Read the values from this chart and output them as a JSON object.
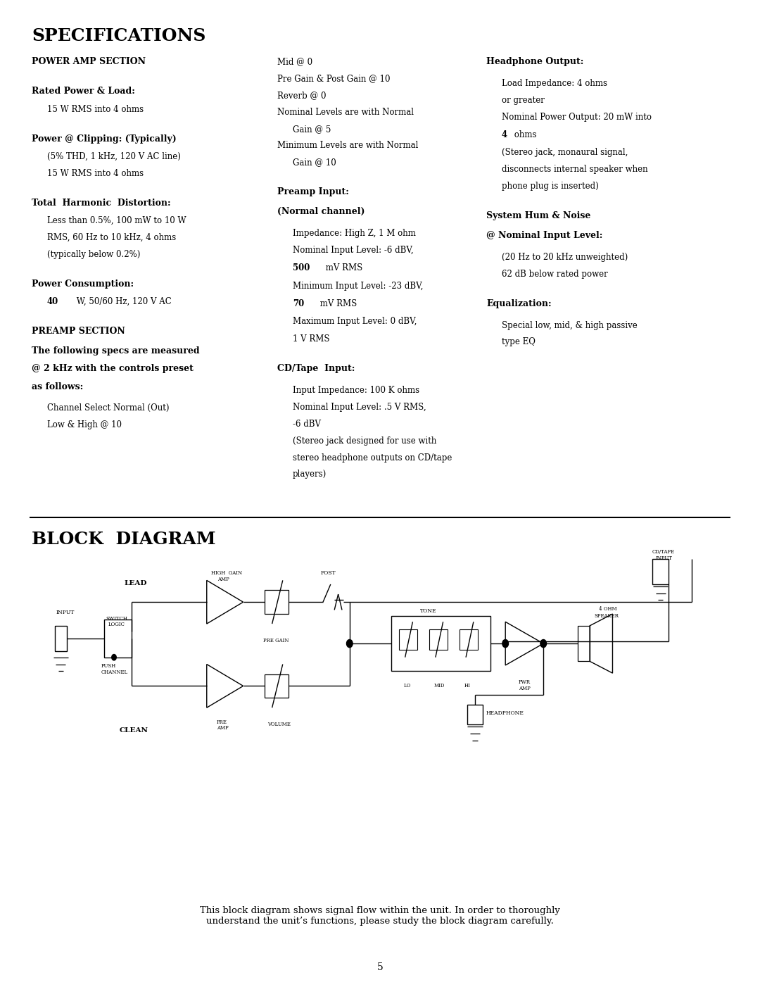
{
  "bg_color": "#ffffff",
  "page_width": 10.8,
  "page_height": 14.02,
  "specs_title": "SPECIFICATIONS",
  "block_diagram_title": "BLOCK  DIAGRAM",
  "footer_text": "This block diagram shows signal flow within the unit. In order to thoroughly\nunderstand the unit’s functions, please study the block diagram carefully.",
  "page_number": "5"
}
